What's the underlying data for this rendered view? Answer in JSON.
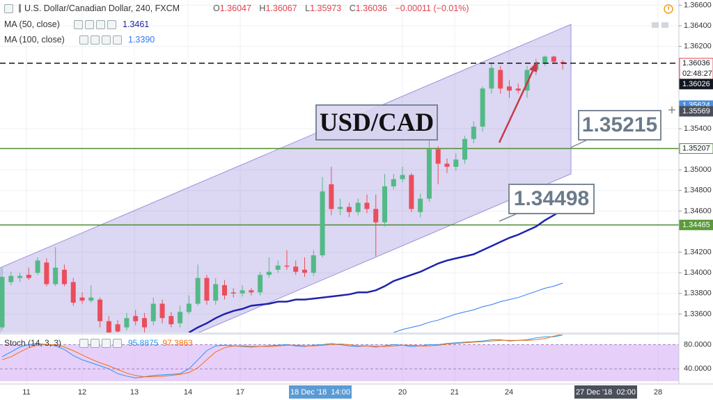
{
  "chart_data": {
    "type": "candlestick",
    "title": "U.S. Dollar/Canadian Dollar, 240, FXCM",
    "ohlc_labels": [
      "O",
      "H",
      "L",
      "C"
    ],
    "change": "−0.00011 (−0.01%)",
    "ylim": [
      1.3342,
      1.3665
    ],
    "yticks": [
      {
        "value": 1.366,
        "label": "1.36600"
      },
      {
        "value": 1.364,
        "label": "1.36400"
      },
      {
        "value": 1.362,
        "label": "1.36200"
      },
      {
        "value": 1.354,
        "label": "1.35400"
      },
      {
        "value": 1.35,
        "label": "1.35000"
      },
      {
        "value": 1.348,
        "label": "1.34800"
      },
      {
        "value": 1.346,
        "label": "1.34600"
      },
      {
        "value": 1.342,
        "label": "1.34200"
      },
      {
        "value": 1.34,
        "label": "1.34000"
      },
      {
        "value": 1.338,
        "label": "1.33800"
      },
      {
        "value": 1.336,
        "label": "1.33600"
      }
    ],
    "colors": {
      "up": "#53b987",
      "down": "#eb4d5c"
    },
    "ohlc": [
      [
        1.3347,
        1.3405,
        1.3344,
        1.3396
      ],
      [
        1.3391,
        1.3401,
        1.3388,
        1.3397
      ],
      [
        1.3395,
        1.34,
        1.3391,
        1.3397
      ],
      [
        1.3398,
        1.3405,
        1.3393,
        1.3395
      ],
      [
        1.34,
        1.3415,
        1.3398,
        1.3412
      ],
      [
        1.341,
        1.3414,
        1.3387,
        1.3389
      ],
      [
        1.3389,
        1.3425,
        1.3387,
        1.3405
      ],
      [
        1.3403,
        1.3408,
        1.3387,
        1.3389
      ],
      [
        1.3391,
        1.3395,
        1.3368,
        1.3371
      ],
      [
        1.3376,
        1.3381,
        1.337,
        1.3373
      ],
      [
        1.3373,
        1.3388,
        1.3371,
        1.3376
      ],
      [
        1.3374,
        1.3376,
        1.3347,
        1.3353
      ],
      [
        1.3353,
        1.3358,
        1.3342,
        1.3342
      ],
      [
        1.335,
        1.3354,
        1.3342,
        1.3343
      ],
      [
        1.3347,
        1.3361,
        1.3344,
        1.3356
      ],
      [
        1.3358,
        1.3364,
        1.3349,
        1.3353
      ],
      [
        1.3356,
        1.3361,
        1.3342,
        1.3347
      ],
      [
        1.3353,
        1.3376,
        1.3349,
        1.337
      ],
      [
        1.337,
        1.3374,
        1.3351,
        1.3356
      ],
      [
        1.3358,
        1.3362,
        1.3347,
        1.335
      ],
      [
        1.3351,
        1.3368,
        1.3347,
        1.3362
      ],
      [
        1.3362,
        1.3378,
        1.336,
        1.337
      ],
      [
        1.337,
        1.3408,
        1.3368,
        1.3395
      ],
      [
        1.3395,
        1.3398,
        1.3369,
        1.3373
      ],
      [
        1.3373,
        1.3395,
        1.3369,
        1.3389
      ],
      [
        1.3388,
        1.3393,
        1.3374,
        1.3378
      ],
      [
        1.3381,
        1.3385,
        1.3376,
        1.338
      ],
      [
        1.338,
        1.3388,
        1.3377,
        1.3383
      ],
      [
        1.3383,
        1.3385,
        1.3378,
        1.3381
      ],
      [
        1.3381,
        1.3401,
        1.3378,
        1.3398
      ],
      [
        1.3398,
        1.3415,
        1.3395,
        1.3401
      ],
      [
        1.3403,
        1.3412,
        1.34,
        1.3407
      ],
      [
        1.3407,
        1.3422,
        1.3403,
        1.3406
      ],
      [
        1.3406,
        1.3412,
        1.3398,
        1.3401
      ],
      [
        1.3403,
        1.3415,
        1.3396,
        1.34
      ],
      [
        1.34,
        1.3422,
        1.3397,
        1.3417
      ],
      [
        1.3417,
        1.3493,
        1.3415,
        1.3479
      ],
      [
        1.3486,
        1.3503,
        1.3456,
        1.3462
      ],
      [
        1.3462,
        1.3472,
        1.3456,
        1.3464
      ],
      [
        1.3464,
        1.3468,
        1.3454,
        1.3459
      ],
      [
        1.3459,
        1.3472,
        1.3456,
        1.3468
      ],
      [
        1.3468,
        1.3476,
        1.3458,
        1.3462
      ],
      [
        1.3462,
        1.3476,
        1.3416,
        1.3449
      ],
      [
        1.3449,
        1.3496,
        1.3445,
        1.3484
      ],
      [
        1.3484,
        1.3496,
        1.3481,
        1.3491
      ],
      [
        1.3491,
        1.3503,
        1.3488,
        1.3495
      ],
      [
        1.3495,
        1.3497,
        1.3459,
        1.3462
      ],
      [
        1.3459,
        1.3477,
        1.3454,
        1.3472
      ],
      [
        1.3472,
        1.353,
        1.3469,
        1.352
      ],
      [
        1.352,
        1.3523,
        1.3486,
        1.3506
      ],
      [
        1.3506,
        1.3511,
        1.3497,
        1.3503
      ],
      [
        1.3503,
        1.3516,
        1.3499,
        1.351
      ],
      [
        1.351,
        1.3533,
        1.3506,
        1.353
      ],
      [
        1.353,
        1.3547,
        1.3526,
        1.3542
      ],
      [
        1.3542,
        1.3581,
        1.3537,
        1.3579
      ],
      [
        1.3579,
        1.3604,
        1.3574,
        1.3599
      ],
      [
        1.3597,
        1.3601,
        1.3574,
        1.3579
      ],
      [
        1.3581,
        1.3587,
        1.357,
        1.3577
      ],
      [
        1.3579,
        1.3584,
        1.3574,
        1.3577
      ],
      [
        1.3577,
        1.3601,
        1.357,
        1.3597
      ],
      [
        1.3597,
        1.3608,
        1.3592,
        1.3603
      ],
      [
        1.3603,
        1.3611,
        1.3601,
        1.361
      ],
      [
        1.361,
        1.3611,
        1.3603,
        1.3605
      ],
      [
        1.36047,
        1.36067,
        1.35973,
        1.36036
      ]
    ],
    "series": [
      {
        "name": "MA (50, close)",
        "color": "#1e22aa",
        "legend_value": "1.3461",
        "values": [
          null,
          null,
          null,
          null,
          null,
          null,
          null,
          null,
          null,
          null,
          null,
          null,
          null,
          null,
          null,
          null,
          null,
          null,
          null,
          null,
          null,
          1.3342,
          1.3347,
          1.3351,
          1.3356,
          1.336,
          1.3363,
          1.3365,
          1.3368,
          1.3369,
          1.337,
          1.3372,
          1.3372,
          1.3374,
          1.3374,
          1.3375,
          1.3376,
          1.3377,
          1.3378,
          1.3379,
          1.3381,
          1.3381,
          1.3383,
          1.3387,
          1.3392,
          1.3395,
          1.3398,
          1.3401,
          1.3405,
          1.3409,
          1.3412,
          1.3414,
          1.3416,
          1.3418,
          1.3422,
          1.3426,
          1.343,
          1.3434,
          1.3437,
          1.3441,
          1.3445,
          1.3451,
          1.3456,
          1.3461
        ]
      },
      {
        "name": "MA (100, close)",
        "color": "#3179f5",
        "legend_value": "1.3390",
        "values": [
          null,
          null,
          null,
          null,
          null,
          null,
          null,
          null,
          null,
          null,
          null,
          null,
          null,
          null,
          null,
          null,
          null,
          null,
          null,
          null,
          null,
          null,
          null,
          null,
          null,
          null,
          null,
          null,
          null,
          null,
          null,
          null,
          null,
          null,
          null,
          null,
          null,
          null,
          null,
          null,
          null,
          null,
          null,
          null,
          1.3342,
          1.3345,
          1.3347,
          1.3349,
          1.3352,
          1.3354,
          1.3357,
          1.336,
          1.3362,
          1.3364,
          1.3367,
          1.3369,
          1.3372,
          1.3374,
          1.3376,
          1.3379,
          1.3382,
          1.3385,
          1.3387,
          1.339
        ]
      }
    ],
    "levels": [
      1.35207,
      1.34465
    ],
    "level_color": "#4e8a30",
    "price_tags": [
      1.36036,
      1.36026,
      1.35624,
      1.35569,
      1.35207,
      1.34465
    ],
    "price_tag_colors": [
      "#ffffff",
      "#131722",
      "#4a90e2",
      "#4a4f5a",
      "#ffffff",
      "#5b9a3c"
    ],
    "countdown": "02:48:27",
    "annotations": [
      "USD/CAD",
      "1.35215",
      "1.34498"
    ],
    "x_labels": [
      "11",
      "12",
      "13",
      "14",
      "17",
      "20",
      "21",
      "24",
      "28"
    ],
    "crosshair_labels": [
      "18 Dec '18  14:00",
      "27 Dec '18  02:00"
    ],
    "stoch": {
      "title": "Stoch (14, 3, 3)",
      "ylim": [
        15,
        100
      ],
      "yticks": [
        {
          "value": 80,
          "label": "80.0000"
        },
        {
          "value": 40,
          "label": "40.0000"
        }
      ],
      "series": [
        {
          "color": "#2196f3",
          "values": [
            60,
            68,
            76,
            80,
            82,
            80,
            78,
            72,
            62,
            55,
            50,
            45,
            40,
            32,
            28,
            25,
            27,
            29,
            30,
            31,
            32,
            40,
            55,
            70,
            78,
            79,
            78,
            77,
            76,
            77,
            78,
            79,
            80,
            78,
            77,
            79,
            80,
            82,
            80,
            78,
            77,
            78,
            76,
            78,
            80,
            79,
            77,
            78,
            80,
            80,
            82,
            83,
            84,
            85,
            86,
            88,
            88,
            86,
            87,
            88,
            91,
            93,
            93,
            95.8875
          ]
        },
        {
          "color": "#ff6d00",
          "values": [
            55,
            60,
            68,
            75,
            79,
            80,
            80,
            76,
            70,
            63,
            56,
            50,
            45,
            39,
            33,
            29,
            27,
            27,
            28,
            29,
            31,
            34,
            42,
            55,
            68,
            75,
            78,
            78,
            77,
            77,
            77,
            78,
            79,
            79,
            78,
            78,
            79,
            80,
            81,
            80,
            78,
            78,
            77,
            77,
            78,
            79,
            79,
            78,
            78,
            79,
            81,
            82,
            83,
            84,
            85,
            86,
            87,
            87,
            87,
            87,
            88,
            90,
            94,
            97.3863
          ]
        }
      ]
    }
  }
}
